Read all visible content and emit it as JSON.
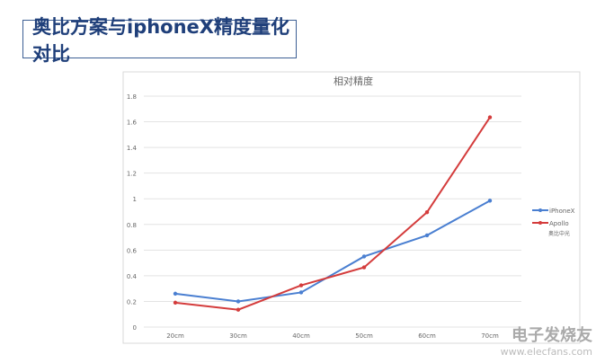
{
  "slide_title": "奥比方案与iphoneX精度量化对比",
  "chart_data": {
    "type": "line",
    "title": "相对精度",
    "categories": [
      "20cm",
      "30cm",
      "40cm",
      "50cm",
      "60cm",
      "70cm"
    ],
    "ylim": [
      0,
      1.8
    ],
    "yticks": [
      0,
      0.2,
      0.4,
      0.6,
      0.8,
      1,
      1.2,
      1.4,
      1.6,
      1.8
    ],
    "grid": true,
    "legend_position": "right",
    "series": [
      {
        "name": "iPhoneX",
        "color": "#4a7fd1",
        "values": [
          0.26,
          0.2,
          0.27,
          0.55,
          0.715,
          0.985
        ]
      },
      {
        "name": "Apollo",
        "sublabel": "奥比中光",
        "color": "#d43c3c",
        "values": [
          0.19,
          0.135,
          0.325,
          0.465,
          0.895,
          1.635
        ]
      }
    ]
  },
  "watermark": {
    "logo": "电子发烧友",
    "url": "www.elecfans.com"
  }
}
